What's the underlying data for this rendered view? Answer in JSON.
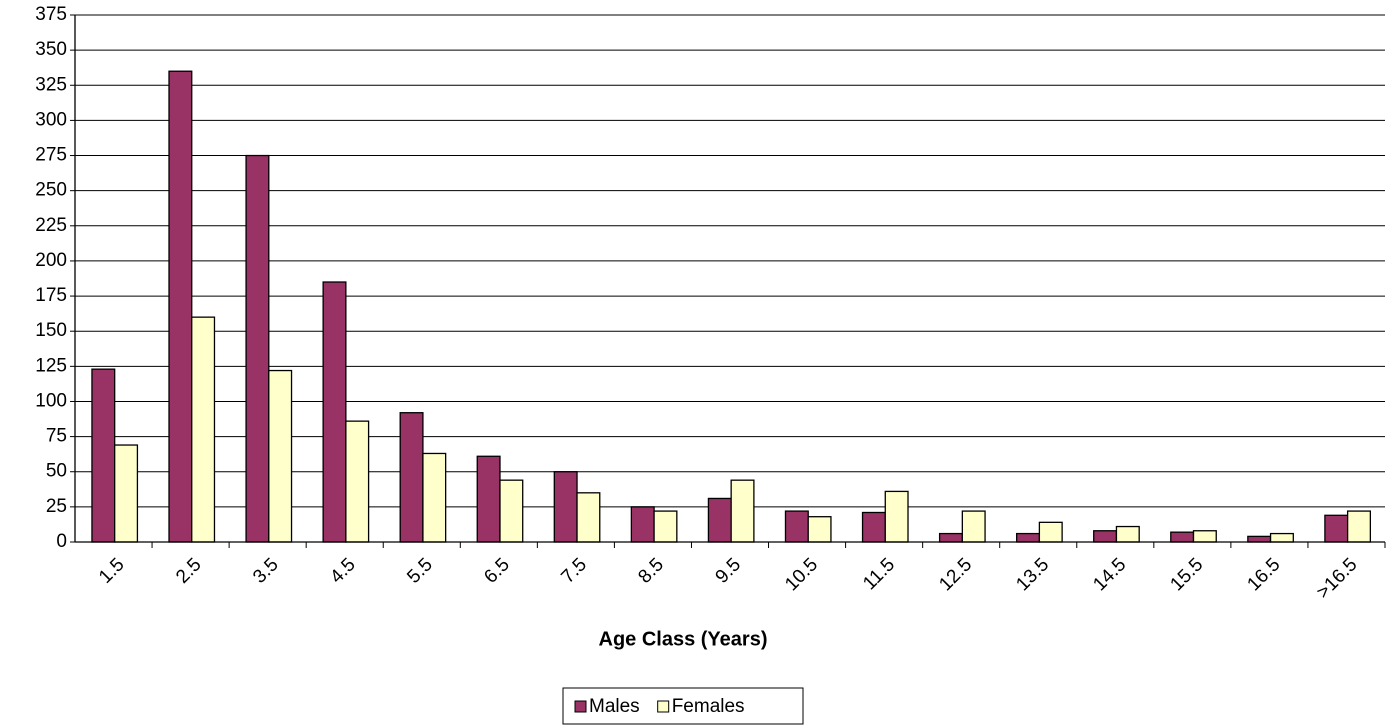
{
  "chart_data": {
    "type": "bar",
    "x_label": "Age Class (Years)",
    "categories": [
      "1.5",
      "2.5",
      "3.5",
      "4.5",
      "5.5",
      "6.5",
      "7.5",
      "8.5",
      "9.5",
      "10.5",
      "11.5",
      "12.5",
      "13.5",
      "14.5",
      "15.5",
      "16.5",
      ">16.5"
    ],
    "series": [
      {
        "name": "Males",
        "color": "#993366",
        "values": [
          123,
          335,
          275,
          185,
          92,
          61,
          50,
          25,
          31,
          22,
          21,
          6,
          6,
          8,
          7,
          4,
          19
        ]
      },
      {
        "name": "Females",
        "color": "#FFFFCC",
        "values": [
          69,
          160,
          122,
          86,
          63,
          44,
          35,
          22,
          44,
          18,
          36,
          22,
          14,
          11,
          8,
          6,
          22
        ]
      }
    ],
    "ylim": [
      0,
      375
    ],
    "yticks": [
      0,
      25,
      50,
      75,
      100,
      125,
      150,
      175,
      200,
      225,
      250,
      275,
      300,
      325,
      350,
      375
    ],
    "grid": true,
    "legend": "bottom"
  }
}
